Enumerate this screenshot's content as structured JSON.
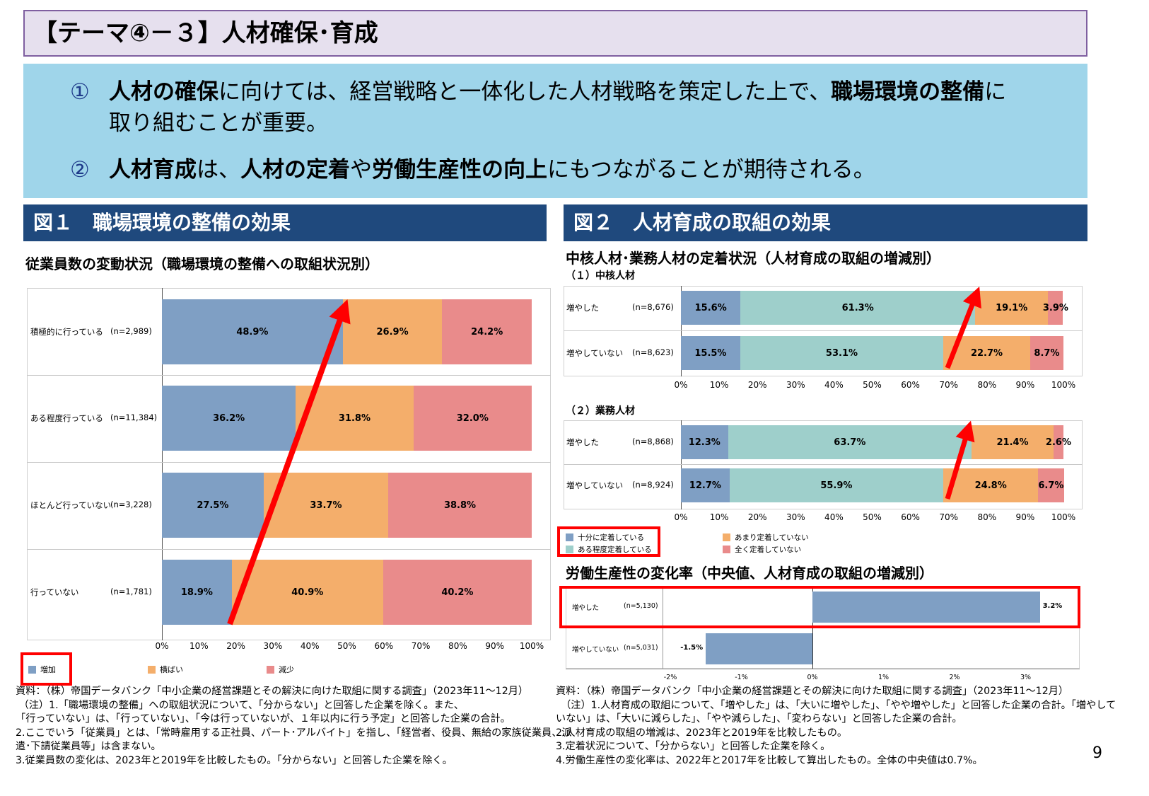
{
  "title": "【テーマ④－３】人材確保･育成",
  "summary": {
    "p1": {
      "num": "①",
      "b1": "人材の確保",
      "t1": "に向けては、経営戦略と一体化した人材戦略を策定した上で、",
      "b2": "職場環境の整備",
      "t2": "に",
      "line2": "取り組むことが重要。"
    },
    "p2": {
      "num": "②",
      "b1": "人材育成",
      "t1": "は、",
      "b2": "人材の定着",
      "t2": "や",
      "b3": "労働生産性の向上",
      "t3": "にもつながることが期待される。"
    }
  },
  "fig1": {
    "header": "図１　職場環境の整備の効果",
    "subtitle": "従業員数の変動状況（職場環境の整備への取組状況別）"
  },
  "fig2": {
    "header": "図２　人材育成の取組の効果",
    "subtitle": "中核人材･業務人材の定着状況（人材育成の取組の増減別）",
    "sub1": "（１）中核人材",
    "sub2": "（２）業務人材",
    "subtitle2": "労働生産性の変化率（中央値、人材育成の取組の増減別）"
  },
  "colors": {
    "blue": "#7f9fc4",
    "teal": "#9ecfcb",
    "orange": "#f4ae6b",
    "pink": "#e98b8b",
    "highlight": "#ff0000"
  },
  "chart_data": [
    {
      "type": "bar",
      "orientation": "horizontal",
      "stacked": true,
      "xlim": [
        0,
        100
      ],
      "ticks": [
        "0%",
        "10%",
        "20%",
        "30%",
        "40%",
        "50%",
        "60%",
        "70%",
        "80%",
        "90%",
        "100%"
      ],
      "categories": [
        "積極的に行っている",
        "ある程度行っている",
        "ほとんど行っていない",
        "行っていない"
      ],
      "n": [
        "(n=2,989)",
        "(n=11,384)",
        "(n=3,228)",
        "(n=1,781)"
      ],
      "series": [
        {
          "name": "増加",
          "values": [
            48.9,
            36.2,
            27.5,
            18.9
          ]
        },
        {
          "name": "横ばい",
          "values": [
            26.9,
            31.8,
            33.7,
            40.9
          ]
        },
        {
          "name": "減少",
          "values": [
            24.2,
            32.0,
            38.8,
            40.2
          ]
        }
      ],
      "labels": [
        [
          "48.9%",
          "26.9%",
          "24.2%"
        ],
        [
          "36.2%",
          "31.8%",
          "32.0%"
        ],
        [
          "27.5%",
          "33.7%",
          "38.8%"
        ],
        [
          "18.9%",
          "40.9%",
          "40.2%"
        ]
      ]
    },
    {
      "type": "bar",
      "orientation": "horizontal",
      "stacked": true,
      "xlim": [
        0,
        100
      ],
      "ticks": [
        "0%",
        "10%",
        "20%",
        "30%",
        "40%",
        "50%",
        "60%",
        "70%",
        "80%",
        "90%",
        "100%"
      ],
      "categories": [
        "増やした",
        "増やしていない"
      ],
      "n": [
        "(n=8,676)",
        "(n=8,623)"
      ],
      "series": [
        {
          "name": "十分に定着している",
          "values": [
            15.6,
            15.5
          ]
        },
        {
          "name": "ある程度定着している",
          "values": [
            61.3,
            53.1
          ]
        },
        {
          "name": "あまり定着していない",
          "values": [
            19.1,
            22.7
          ]
        },
        {
          "name": "全く定着していない",
          "values": [
            3.9,
            8.7
          ]
        }
      ],
      "labels": [
        [
          "15.6%",
          "61.3%",
          "19.1%",
          "3.9%"
        ],
        [
          "15.5%",
          "53.1%",
          "22.7%",
          "8.7%"
        ]
      ]
    },
    {
      "type": "bar",
      "orientation": "horizontal",
      "stacked": true,
      "xlim": [
        0,
        100
      ],
      "ticks": [
        "0%",
        "10%",
        "20%",
        "30%",
        "40%",
        "50%",
        "60%",
        "70%",
        "80%",
        "90%",
        "100%"
      ],
      "categories": [
        "増やした",
        "増やしていない"
      ],
      "n": [
        "(n=8,868)",
        "(n=8,924)"
      ],
      "series": [
        {
          "name": "十分に定着している",
          "values": [
            12.3,
            12.7
          ]
        },
        {
          "name": "ある程度定着している",
          "values": [
            63.7,
            55.9
          ]
        },
        {
          "name": "あまり定着していない",
          "values": [
            21.4,
            24.8
          ]
        },
        {
          "name": "全く定着していない",
          "values": [
            2.6,
            6.7
          ]
        }
      ],
      "labels": [
        [
          "12.3%",
          "63.7%",
          "21.4%",
          "2.6%"
        ],
        [
          "12.7%",
          "55.9%",
          "24.8%",
          "6.7%"
        ]
      ]
    },
    {
      "type": "bar",
      "orientation": "horizontal",
      "xlim": [
        -2,
        3.7
      ],
      "ticks": [
        "-2%",
        "-1%",
        "0%",
        "1%",
        "2%",
        "3%"
      ],
      "categories": [
        "増やした",
        "増やしていない"
      ],
      "n": [
        "(n=5,130)",
        "(n=5,031)"
      ],
      "values": [
        3.2,
        -1.5
      ],
      "labels": [
        "3.2%",
        "-1.5%"
      ]
    }
  ],
  "notes_left": [
    "資料：（株）帝国データバンク「中小企業の経営課題とその解決に向けた取組に関する調査」（2023年11～12月）",
    " （注）1.「職場環境の整備」への取組状況について、「分からない」と回答した企業を除く。また、",
    "「行っていない」は、「行っていない」、「今は行っていないが、１年以内に行う予定」と回答した企業の合計。",
    "2.ここでいう「従業員」とは、「常時雇用する正社員、パート･アルバイト」を指し、「経営者、役員、無給の家族従業員、派",
    "遣･下請従業員等」は含まない。",
    "3.従業員数の変化は、2023年と2019年を比較したもの。「分からない」と回答した企業を除く。"
  ],
  "notes_right": [
    "資料：（株）帝国データバンク「中小企業の経営課題とその解決に向けた取組に関する調査」（2023年11～12月）",
    "　（注）1.人材育成の取組について、「増やした」は、「大いに増やした」、「やや増やした」と回答した企業の合計。「増やして",
    "いない」は、「大いに減らした」、「やや減らした」、「変わらない」と回答した企業の合計。",
    "2.人材育成の取組の増減は、2023年と2019年を比較したもの。",
    "3.定着状況について、「分からない」と回答した企業を除く。",
    "4.労働生産性の変化率は、2022年と2017年を比較して算出したもの。全体の中央値は0.7%。"
  ],
  "page_number": "9"
}
